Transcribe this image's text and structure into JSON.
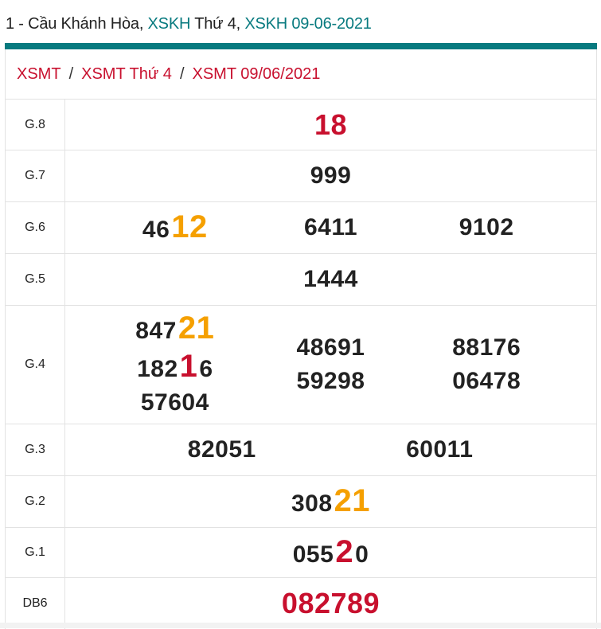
{
  "title": {
    "prefix": "1 - Cầu Khánh Hòa, ",
    "link1": "XSKH",
    "mid": " Thứ 4, ",
    "link2": "XSKH 09-06-2021"
  },
  "breadcrumb": [
    "XSMT",
    "XSMT Thứ 4",
    "XSMT 09/06/2021"
  ],
  "breadcrumb_sep": "/",
  "colors": {
    "accent": "#087a7f",
    "red": "#c8102e",
    "orange": "#f5a000"
  },
  "rows": [
    {
      "label": "G.8",
      "cols": [
        [
          [
            {
              "t": "18",
              "c": "rf"
            }
          ]
        ]
      ]
    },
    {
      "label": "G.7",
      "cols": [
        [
          [
            {
              "t": "999",
              "c": ""
            }
          ]
        ]
      ]
    },
    {
      "label": "G.6",
      "cols": [
        [
          [
            {
              "t": "46",
              "c": ""
            },
            {
              "t": "12",
              "c": "o"
            }
          ]
        ],
        [
          [
            {
              "t": "6411",
              "c": ""
            }
          ]
        ],
        [
          [
            {
              "t": "9102",
              "c": ""
            }
          ]
        ]
      ]
    },
    {
      "label": "G.5",
      "cols": [
        [
          [
            {
              "t": "1444",
              "c": ""
            }
          ]
        ]
      ]
    },
    {
      "label": "G.4",
      "cols": [
        [
          [
            {
              "t": "847",
              "c": ""
            },
            {
              "t": "21",
              "c": "o"
            }
          ],
          [
            {
              "t": "182",
              "c": ""
            },
            {
              "t": "1",
              "c": "r"
            },
            {
              "t": "6",
              "c": ""
            }
          ],
          [
            {
              "t": "57604",
              "c": ""
            }
          ]
        ],
        [
          [
            {
              "t": "48691",
              "c": ""
            }
          ],
          [
            {
              "t": "59298",
              "c": ""
            }
          ]
        ],
        [
          [
            {
              "t": "88176",
              "c": ""
            }
          ],
          [
            {
              "t": "06478",
              "c": ""
            }
          ]
        ]
      ]
    },
    {
      "label": "G.3",
      "cols": [
        [
          [
            {
              "t": "82051",
              "c": ""
            }
          ]
        ],
        [
          [
            {
              "t": "60011",
              "c": ""
            }
          ]
        ]
      ]
    },
    {
      "label": "G.2",
      "cols": [
        [
          [
            {
              "t": "308",
              "c": ""
            },
            {
              "t": "21",
              "c": "o"
            }
          ]
        ]
      ]
    },
    {
      "label": "G.1",
      "cols": [
        [
          [
            {
              "t": "055",
              "c": ""
            },
            {
              "t": "2",
              "c": "r"
            },
            {
              "t": "0",
              "c": ""
            }
          ]
        ]
      ]
    },
    {
      "label": "DB6",
      "cols": [
        [
          [
            {
              "t": "082789",
              "c": "rf"
            }
          ]
        ]
      ]
    }
  ]
}
